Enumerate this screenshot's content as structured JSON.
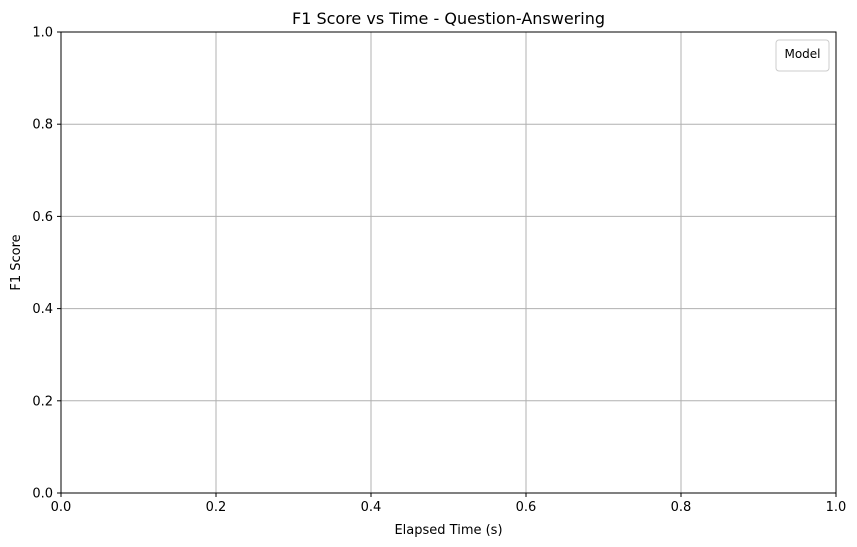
{
  "chart_data": {
    "type": "line",
    "title": "F1 Score vs Time - Question-Answering",
    "xlabel": "Elapsed Time (s)",
    "ylabel": "F1 Score",
    "xlim": [
      0.0,
      1.0
    ],
    "ylim": [
      0.0,
      1.0
    ],
    "x_ticks": [
      "0.0",
      "0.2",
      "0.4",
      "0.6",
      "0.8",
      "1.0"
    ],
    "y_ticks": [
      "0.0",
      "0.2",
      "0.4",
      "0.6",
      "0.8",
      "1.0"
    ],
    "grid": true,
    "legend": {
      "title": "Model",
      "placement": "top-right",
      "entries": []
    },
    "series": []
  },
  "colors": {
    "grid": "#b0b0b0",
    "axis": "#000000",
    "legend_border": "#cccccc",
    "background": "#ffffff"
  }
}
